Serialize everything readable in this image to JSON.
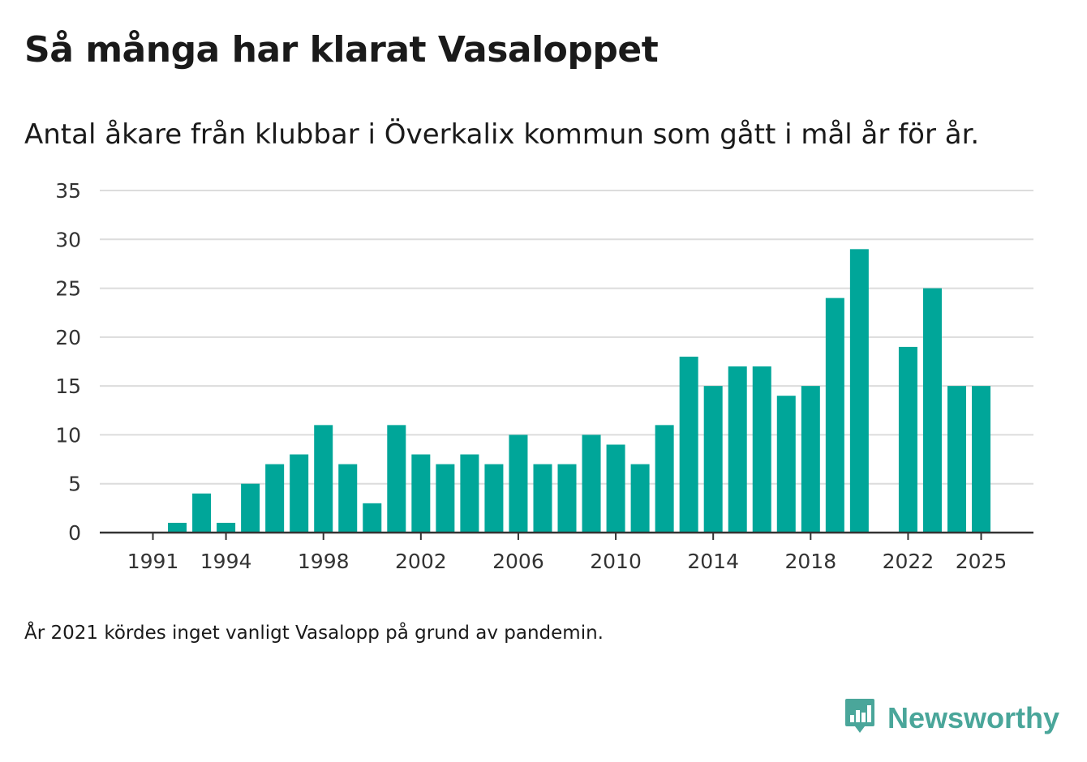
{
  "colors": {
    "bar": "#00a699",
    "grid": "#dcdcdc",
    "axis": "#333333",
    "brand": "#4aa69a"
  },
  "brand": {
    "name": "Newsworthy",
    "logo_icon": "newsworthy-logo-icon"
  },
  "footnote": "År 2021 kördes inget vanligt Vasalopp på grund av pandemin.",
  "chart_data": {
    "type": "bar",
    "title": "Så många har klarat Vasaloppet",
    "subtitle": "Antal åkare från klubbar i Överkalix kommun som gått i mål år för år.",
    "xlabel": "",
    "ylabel": "",
    "ylim": [
      0,
      35
    ],
    "yticks": [
      0,
      5,
      10,
      15,
      20,
      25,
      30,
      35
    ],
    "xticks": [
      "1991",
      "1994",
      "1998",
      "2002",
      "2006",
      "2010",
      "2014",
      "2018",
      "2022",
      "2025"
    ],
    "grid": true,
    "categories": [
      "1991",
      "1992",
      "1993",
      "1994",
      "1995",
      "1996",
      "1997",
      "1998",
      "1999",
      "2000",
      "2001",
      "2002",
      "2003",
      "2004",
      "2005",
      "2006",
      "2007",
      "2008",
      "2009",
      "2010",
      "2011",
      "2012",
      "2013",
      "2014",
      "2015",
      "2016",
      "2017",
      "2018",
      "2019",
      "2020",
      "2021",
      "2022",
      "2023",
      "2024",
      "2025"
    ],
    "values": [
      0,
      1,
      4,
      1,
      5,
      7,
      8,
      11,
      7,
      3,
      11,
      8,
      7,
      8,
      7,
      10,
      7,
      7,
      10,
      9,
      7,
      11,
      18,
      15,
      17,
      17,
      14,
      15,
      24,
      29,
      null,
      19,
      25,
      15,
      15
    ]
  }
}
